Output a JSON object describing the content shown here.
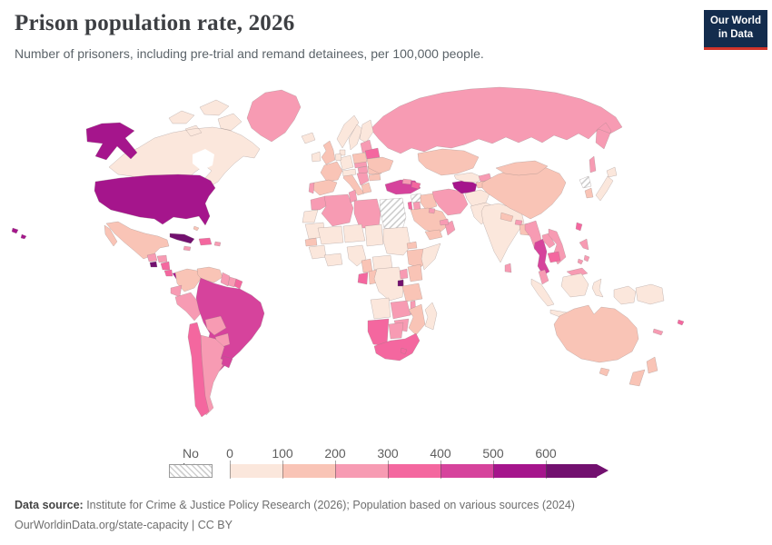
{
  "header": {
    "title": "Prison population rate, 2026",
    "subtitle": "Number of prisoners, including pre-trial and remand detainees, per 100,000 people."
  },
  "logo": {
    "line1": "Our World",
    "line2": "in Data",
    "bg": "#132c4d",
    "accent": "#d0342a"
  },
  "legend": {
    "no_data_label": "No data",
    "ticks": [
      "0",
      "100",
      "200",
      "300",
      "400",
      "500",
      "600"
    ]
  },
  "footer": {
    "source_label": "Data source:",
    "source_text": " Institute for Crime & Justice Policy Research (2026); Population based on various sources (2024)",
    "link_line": "OurWorldinData.org/state-capacity | CC BY"
  },
  "chart_data": {
    "type": "choropleth",
    "title": "Prison population rate, 2026",
    "subtitle": "Number of prisoners, including pre-trial and remand detainees, per 100,000 people",
    "unit": "prisoners per 100,000 people",
    "legend_ticks": [
      0,
      100,
      200,
      300,
      400,
      500,
      600
    ],
    "bins": [
      {
        "label": "0-100",
        "color": "#fbe7dc"
      },
      {
        "label": "100-200",
        "color": "#f9c4b6"
      },
      {
        "label": "200-300",
        "color": "#f79bb3"
      },
      {
        "label": "300-400",
        "color": "#f4679f"
      },
      {
        "label": "400-500",
        "color": "#d6439c"
      },
      {
        "label": "500-600",
        "color": "#a5158c"
      },
      {
        "label": "600+",
        "color": "#72106f"
      },
      {
        "label": "No data",
        "color": "hatch"
      }
    ],
    "countries": {
      "united-states": "500-600",
      "canada": "0-100",
      "greenland": "200-300",
      "iceland": "0-100",
      "mexico": "100-200",
      "guatemala": "200-300",
      "el-salvador": "600+",
      "honduras": "200-300",
      "nicaragua": "300-400",
      "costa-rica": "300-400",
      "panama": "500-600",
      "cuba": "600+",
      "jamaica": "200-300",
      "hispaniola": "300-400",
      "puerto-rico": "200-300",
      "bahamas": "100-200",
      "colombia": "100-200",
      "venezuela": "100-200",
      "guyana": "200-300",
      "suriname": "200-300",
      "french-guiana": "300-400",
      "ecuador": "200-300",
      "peru": "200-300",
      "brazil": "400-500",
      "bolivia": "200-300",
      "paraguay": "200-300",
      "chile": "300-400",
      "argentina": "200-300",
      "uruguay": "400-500",
      "ireland": "0-100",
      "united-kingdom": "100-200",
      "norway": "0-100",
      "sweden": "0-100",
      "finland": "0-100",
      "denmark": "0-100",
      "germany": "0-100",
      "benelux": "0-100",
      "france": "100-200",
      "spain": "100-200",
      "portugal": "200-300",
      "italy": "100-200",
      "switzerland-austria": "0-100",
      "czechia-slovakia": "200-300",
      "poland": "100-200",
      "hungary": "200-300",
      "balkans": "200-300",
      "greece": "100-200",
      "romania": "100-200",
      "bulgaria": "100-200",
      "baltics": "200-300",
      "belarus": "300-400",
      "ukraine": "100-200",
      "russia": "200-300",
      "kazakhstan": "100-200",
      "georgia": "200-300",
      "azerbaijan": "300-400",
      "turkey": "400-500",
      "syria": "No data",
      "israel": "300-400",
      "jordan": "200-300",
      "iraq": "100-200",
      "saudi-arabia": "100-200",
      "yemen": "100-200",
      "oman": "200-300",
      "uae": "200-300",
      "kuwait": "200-300",
      "iran": "200-300",
      "turkmenistan": "500-600",
      "uzbekistan": "0-100",
      "kyrgyzstan": "200-300",
      "tajikistan": "100-200",
      "afghanistan": "0-100",
      "pakistan": "0-100",
      "india": "0-100",
      "nepal": "100-200",
      "bhutan": "200-300",
      "bangladesh": "100-200",
      "sri-lanka": "200-300",
      "china": "100-200",
      "mongolia": "100-200",
      "myanmar": "200-300",
      "thailand": "400-500",
      "laos": "200-300",
      "vietnam": "200-300",
      "cambodia": "300-400",
      "malaysia": "200-300",
      "indonesia": "0-100",
      "philippines": "200-300",
      "taiwan": "300-400",
      "japan": "0-100",
      "south-korea": "100-200",
      "north-korea": "No data",
      "papua-new-guinea": "0-100",
      "australia": "100-200",
      "new-zealand": "100-200",
      "fiji": "300-400",
      "new-caledonia": "200-300",
      "morocco": "200-300",
      "western-sahara": "0-100",
      "algeria": "200-300",
      "tunisia": "200-300",
      "libya": "200-300",
      "egypt": "No data",
      "mauritania": "0-100",
      "mali": "0-100",
      "niger": "0-100",
      "chad": "0-100",
      "sudan": "0-100",
      "eritrea": "100-200",
      "ethiopia": "100-200",
      "somalia": "0-100",
      "senegal": "100-200",
      "guinea": "0-100",
      "ghana": "0-100",
      "nigeria": "0-100",
      "cameroon": "100-200",
      "central-african-republic": "0-100",
      "gabon": "300-400",
      "congo": "100-200",
      "drc": "0-100",
      "uganda": "200-300",
      "kenya": "100-200",
      "rwanda": "600+",
      "tanzania": "100-200",
      "angola": "0-100",
      "zambia": "200-300",
      "malawi": "200-300",
      "mozambique": "100-200",
      "zimbabwe": "200-300",
      "botswana": "200-300",
      "namibia": "300-400",
      "south-africa": "300-400",
      "lesotho": "300-400",
      "madagascar": "0-100"
    }
  }
}
